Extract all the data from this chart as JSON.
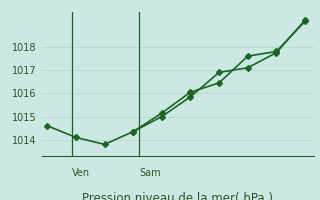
{
  "title": "",
  "xlabel": "Pression niveau de la mer( hPa )",
  "background_color": "#cce8e4",
  "grid_color": "#c0d8d4",
  "line_color": "#1a6620",
  "axis_line_color": "#1a6620",
  "series1_x": [
    0,
    1,
    2,
    3,
    4,
    5,
    6,
    7,
    8,
    9
  ],
  "series1_y": [
    1014.6,
    1014.1,
    1013.8,
    1014.35,
    1015.15,
    1016.05,
    1016.45,
    1017.6,
    1017.8,
    1019.1
  ],
  "series2_x": [
    3,
    4,
    5,
    6,
    7,
    8,
    9
  ],
  "series2_y": [
    1014.35,
    1015.0,
    1015.85,
    1016.9,
    1017.1,
    1017.75,
    1019.15
  ],
  "ylim": [
    1013.3,
    1019.5
  ],
  "yticks": [
    1014,
    1015,
    1016,
    1017,
    1018
  ],
  "xlim": [
    -0.2,
    9.3
  ],
  "ven_x": 0.85,
  "sam_x": 3.2,
  "marker": "D",
  "marker_size": 3,
  "line_width": 1.2,
  "tick_fontsize": 7,
  "xlabel_fontsize": 8.5
}
